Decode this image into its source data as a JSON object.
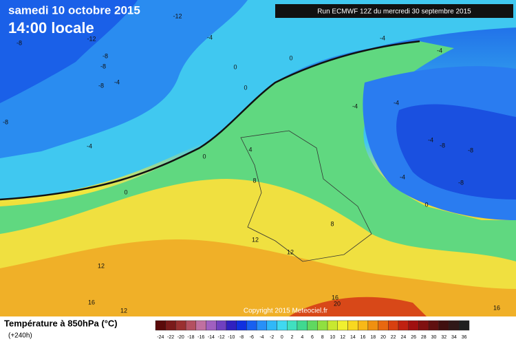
{
  "header": {
    "date": "samedi 10 octobre 2015",
    "time": "14:00 locale",
    "run": "Run ECMWF 12Z du mercredi 30 septembre 2015"
  },
  "copyright": "Copyright 2015 Meteociel.fr",
  "legend": {
    "title": "Température à 850hPa (°C)",
    "lead": "(+240h)",
    "scale": [
      {
        "value": -24,
        "color": "#5a0a0a"
      },
      {
        "value": -22,
        "color": "#7a1a1a"
      },
      {
        "value": -20,
        "color": "#9a3030"
      },
      {
        "value": -18,
        "color": "#b45060"
      },
      {
        "value": -16,
        "color": "#c070a0"
      },
      {
        "value": -14,
        "color": "#a060c0"
      },
      {
        "value": -12,
        "color": "#7040c0"
      },
      {
        "value": -10,
        "color": "#3020c0"
      },
      {
        "value": -8,
        "color": "#1030e0"
      },
      {
        "value": -6,
        "color": "#1860f0"
      },
      {
        "value": -4,
        "color": "#2890f8"
      },
      {
        "value": -2,
        "color": "#30b8f8"
      },
      {
        "value": 0,
        "color": "#40d8f0"
      },
      {
        "value": 2,
        "color": "#40e0c0"
      },
      {
        "value": 4,
        "color": "#40d890"
      },
      {
        "value": 6,
        "color": "#60d860"
      },
      {
        "value": 8,
        "color": "#90e040"
      },
      {
        "value": 10,
        "color": "#c8e830"
      },
      {
        "value": 12,
        "color": "#f0f030"
      },
      {
        "value": 14,
        "color": "#f8d820"
      },
      {
        "value": 16,
        "color": "#f8b818"
      },
      {
        "value": 18,
        "color": "#f09010"
      },
      {
        "value": 20,
        "color": "#e86810"
      },
      {
        "value": 22,
        "color": "#d84010"
      },
      {
        "value": 24,
        "color": "#c02010"
      },
      {
        "value": 26,
        "color": "#a01010"
      },
      {
        "value": 28,
        "color": "#801010"
      },
      {
        "value": 30,
        "color": "#601010"
      },
      {
        "value": 32,
        "color": "#401010"
      },
      {
        "value": 34,
        "color": "#301818"
      },
      {
        "value": 36,
        "color": "#202020"
      }
    ]
  },
  "contour_labels": [
    -12,
    -12,
    -8,
    -8,
    -8,
    -8,
    -4,
    -8,
    -4,
    0,
    0,
    0,
    0,
    0,
    4,
    8,
    8,
    12,
    12,
    12,
    12,
    16,
    16,
    20,
    16,
    -4,
    -4,
    -4,
    -8,
    -8,
    -8,
    -4,
    -4,
    0,
    -4,
    -4
  ]
}
